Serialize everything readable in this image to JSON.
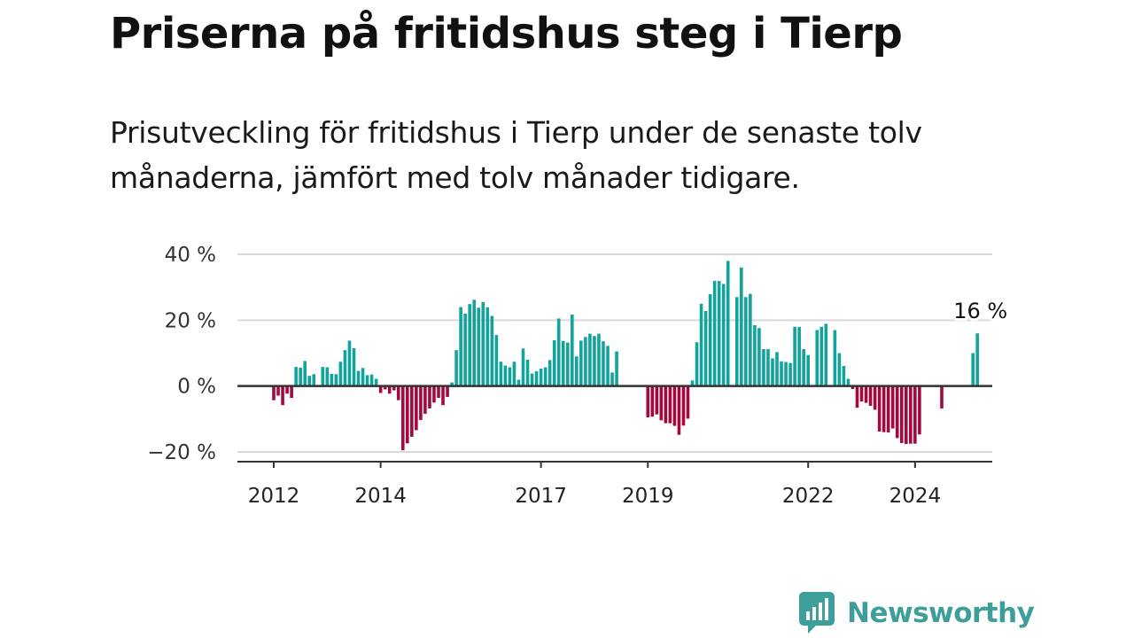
{
  "header": {
    "title": "Priserna på fritidshus steg i Tierp",
    "subtitle": "Prisutveckling för fritidshus i Tierp under de senaste tolv månaderna, jämfört med tolv månader tidigare."
  },
  "brand": {
    "name": "Newsworthy",
    "color": "#3e9e9a"
  },
  "colors": {
    "positive": "#12a39b",
    "negative": "#a3093e",
    "grid": "#d9d9d9",
    "axis": "#333333"
  },
  "chart_data": {
    "type": "bar",
    "title": "Priserna på fritidshus steg i Tierp",
    "xlabel": "",
    "ylabel": "",
    "ylim": [
      -20,
      40
    ],
    "yticks": [
      -20,
      0,
      20,
      40
    ],
    "ytick_labels": [
      "−20 %",
      "0 %",
      "20 %",
      "40 %"
    ],
    "xtick_labels": [
      "2012",
      "2014",
      "2017",
      "2019",
      "2022",
      "2024"
    ],
    "xtick_index": [
      0,
      24,
      60,
      84,
      120,
      144
    ],
    "start": "2012-01",
    "values": [
      -4.3,
      -2.9,
      -5.8,
      -2.3,
      -3.6,
      5.8,
      5.6,
      7.6,
      3.1,
      3.6,
      null,
      5.8,
      5.7,
      3.7,
      3.6,
      7.4,
      10.9,
      13.8,
      11.5,
      4.6,
      5.5,
      3.3,
      3.5,
      2.2,
      -2.1,
      -1.0,
      -2.3,
      -1.3,
      -4.3,
      -19.5,
      -17.4,
      -15.4,
      -13.4,
      -10.3,
      -8.4,
      -6.8,
      -5.0,
      -3.6,
      -5.8,
      -3.3,
      1.1,
      10.9,
      24.0,
      22.0,
      24.9,
      26.2,
      23.8,
      25.5,
      23.9,
      21.3,
      15.5,
      7.4,
      6.2,
      5.7,
      7.4,
      1.9,
      11.4,
      8.0,
      3.8,
      4.5,
      5.3,
      5.7,
      7.9,
      13.9,
      20.5,
      13.7,
      13.2,
      21.7,
      9.0,
      13.8,
      14.9,
      15.9,
      15.2,
      15.9,
      13.6,
      12.2,
      4.1,
      10.5,
      null,
      null,
      null,
      null,
      null,
      null,
      -9.5,
      -9.3,
      -8.6,
      -10.4,
      -11.3,
      -11.3,
      -12.1,
      -14.8,
      -12.0,
      -9.9,
      1.7,
      13.3,
      25.0,
      22.8,
      27.9,
      31.9,
      31.9,
      31.0,
      38.0,
      null,
      27.0,
      36.0,
      27.0,
      28.0,
      18.5,
      17.6,
      11.2,
      11.2,
      8.4,
      10.3,
      7.5,
      7.3,
      7.0,
      18.0,
      17.9,
      11.2,
      9.4,
      null,
      17.0,
      18.0,
      18.9,
      null,
      17.0,
      10.0,
      6.1,
      2.2,
      -0.9,
      -6.6,
      -4.7,
      -5.1,
      -6.0,
      -7.2,
      -13.8,
      -14.0,
      -14.1,
      -12.9,
      -15.8,
      -17.3,
      -17.6,
      -17.5,
      -17.5,
      -14.7,
      null,
      null,
      null,
      null,
      -6.8,
      null,
      null,
      null,
      null,
      null,
      null,
      10.0,
      16.0
    ],
    "last_value_label": "16 %"
  }
}
